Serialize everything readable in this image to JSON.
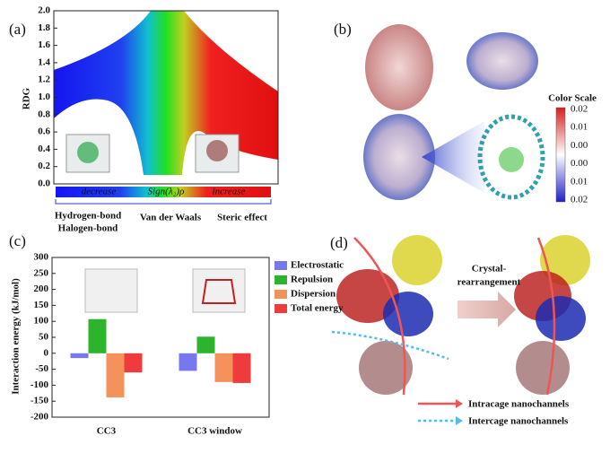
{
  "chart_data": [
    {
      "type": "rdg",
      "panel": "(a)",
      "y_label": "RDG",
      "x_label": "Sign(λ₂)ρ",
      "ylim": [
        0,
        2
      ],
      "yticks": [
        {
          "value": 0,
          "label": "0.0"
        },
        {
          "value": 0.2,
          "label": "0.2"
        },
        {
          "value": 0.4,
          "label": "0.4"
        },
        {
          "value": 0.6,
          "label": "0.6"
        },
        {
          "value": 0.8,
          "label": "0.8"
        },
        {
          "value": 1,
          "label": "1.0"
        },
        {
          "value": 1.2,
          "label": "1.2"
        },
        {
          "value": 1.4,
          "label": "1.4"
        },
        {
          "value": 1.6,
          "label": "1.6"
        },
        {
          "value": 1.8,
          "label": "1.8"
        },
        {
          "value": 2,
          "label": "2.0"
        }
      ],
      "scale_labels": [
        "decrease",
        "increase"
      ],
      "region_labels": [
        "Hydrogen-bond",
        "Halogen-bond",
        "Van der Waals",
        "Steric effect"
      ]
    },
    {
      "type": "bar",
      "panel": "(c)",
      "y_label": "Interaction energy (kJ/mol)",
      "categories": [
        "CC3",
        "CC3 window"
      ],
      "series": [
        {
          "name": "Electrostatic",
          "color": "#7878ee",
          "values": [
            -15,
            -55
          ]
        },
        {
          "name": "Repulsion",
          "color": "#2cb52c",
          "values": [
            107,
            52
          ]
        },
        {
          "name": "Dispersion",
          "color": "#f5915a",
          "values": [
            -138,
            -90
          ]
        },
        {
          "name": "Total energy",
          "color": "#ef3b3b",
          "values": [
            -60,
            -93
          ]
        }
      ],
      "ylim": [
        -200,
        300
      ],
      "yticks": [
        -200,
        -150,
        -100,
        -50,
        0,
        50,
        100,
        150,
        200,
        250,
        300
      ]
    }
  ],
  "panel_b": {
    "label": "(b)",
    "color_scale_title": "Color Scale",
    "color_scale_labels": [
      "0.02",
      "0.01",
      "0.00",
      "0.00",
      "0.01",
      "0.02"
    ]
  },
  "panel_d": {
    "label": "(d)",
    "arrow_label": [
      "Crystal-",
      "rearrangement"
    ],
    "legend": [
      "Intracage nanochannels",
      "Intercage nanochannels"
    ]
  }
}
